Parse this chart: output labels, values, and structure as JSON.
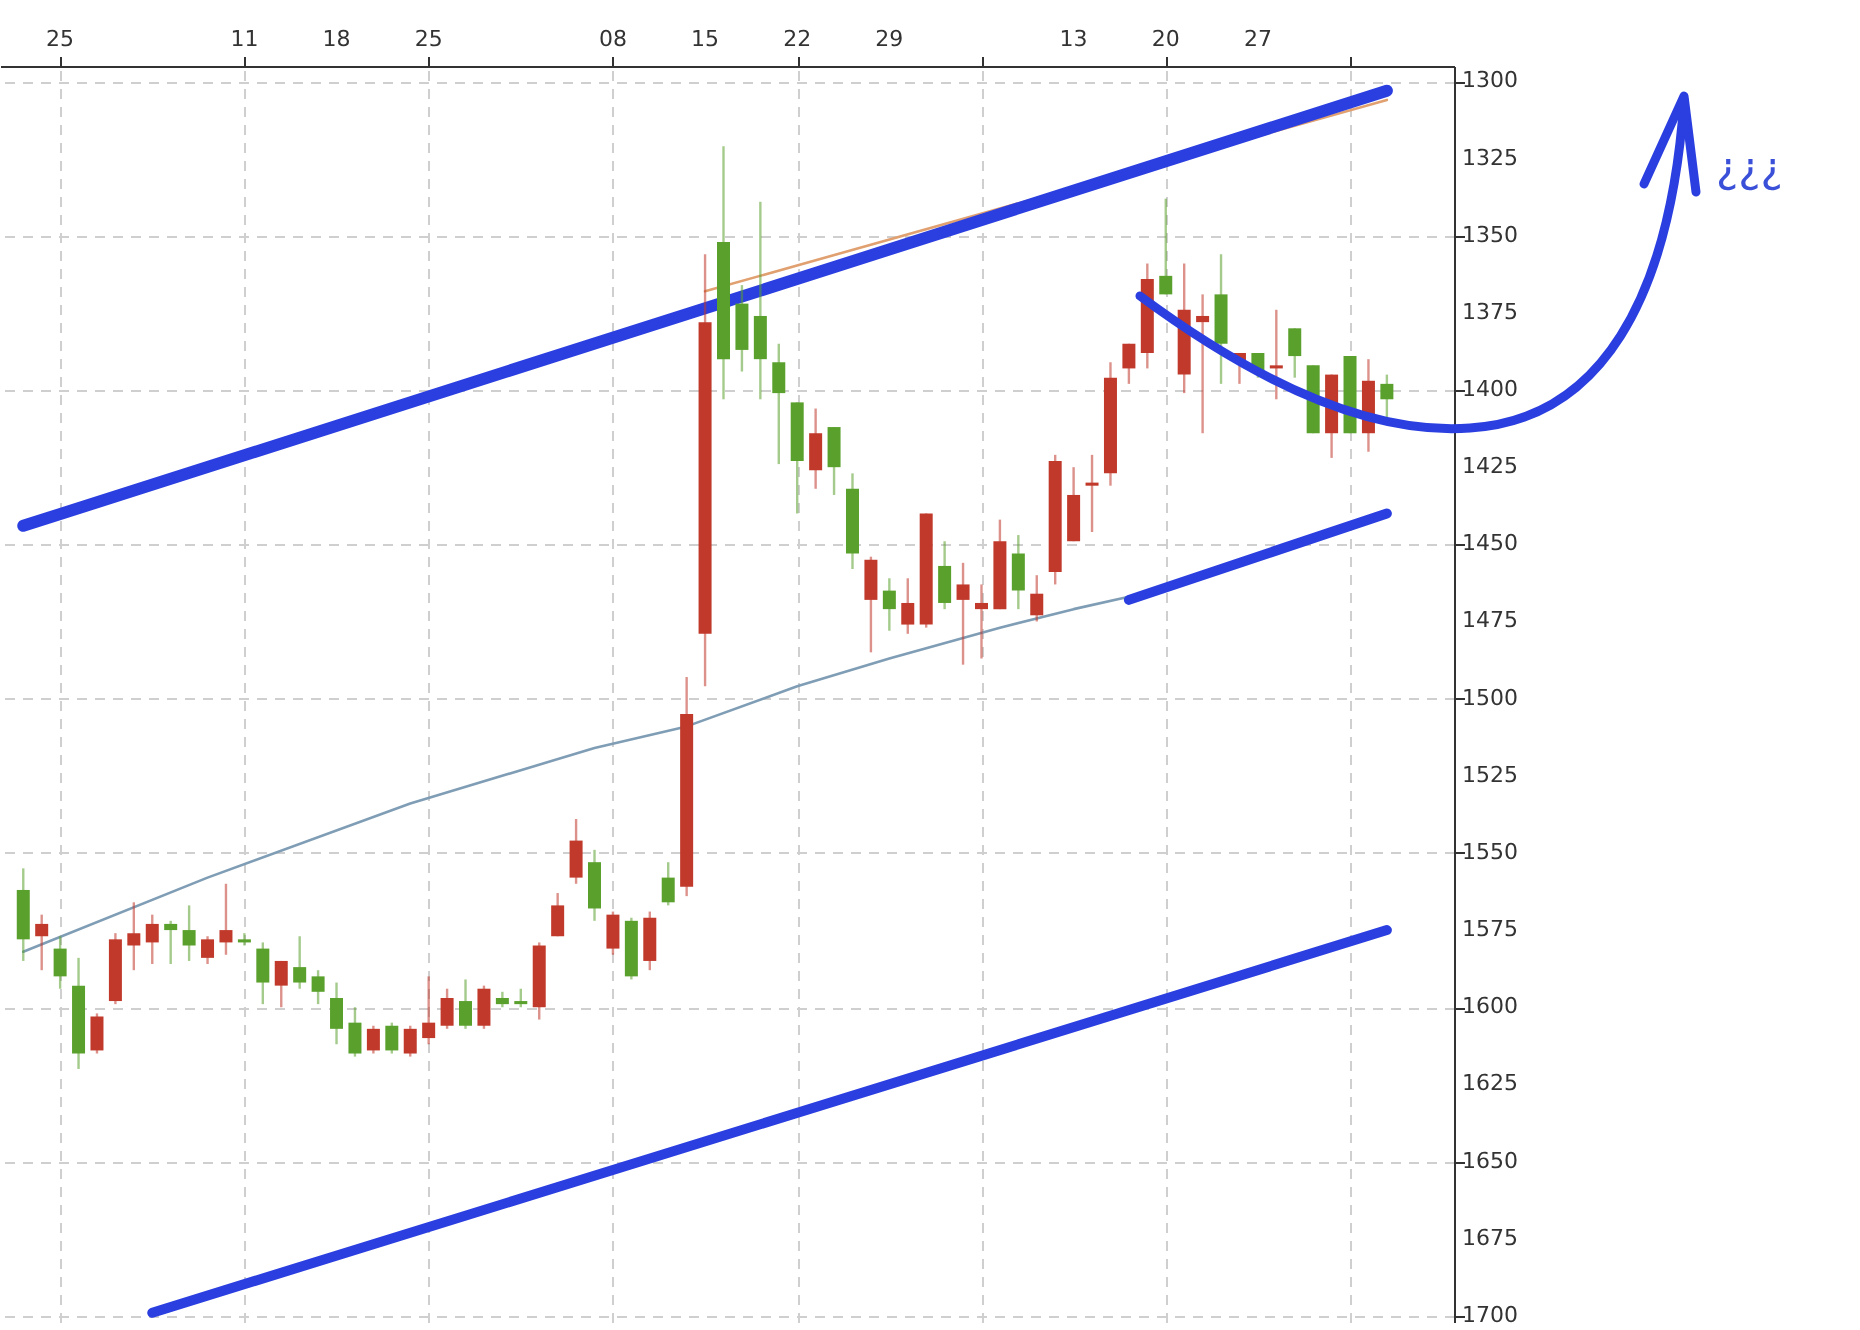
{
  "chart_data": {
    "type": "candlestick",
    "annotations": [
      "¿¿¿"
    ],
    "categories": [
      null,
      null,
      "25",
      null,
      null,
      null,
      null,
      null,
      null,
      null,
      null,
      null,
      "11",
      null,
      null,
      null,
      null,
      "18",
      null,
      null,
      null,
      null,
      "25",
      null,
      null,
      null,
      null,
      null,
      null,
      null,
      null,
      null,
      "08",
      null,
      null,
      null,
      null,
      "15",
      null,
      null,
      null,
      null,
      "22",
      null,
      null,
      null,
      null,
      "29",
      null,
      null,
      null,
      null,
      null,
      null,
      null,
      null,
      null,
      "13",
      null,
      null,
      null,
      null,
      "20",
      null,
      null,
      null,
      null,
      "27",
      null,
      null,
      null,
      null,
      null,
      null,
      null
    ],
    "ohlc": [
      [
        1562,
        1585,
        1555,
        1578
      ],
      [
        1577,
        1588,
        1570,
        1573
      ],
      [
        1581,
        1594,
        1577,
        1590
      ],
      [
        1593,
        1620,
        1584,
        1615
      ],
      [
        1614,
        1615,
        1602,
        1603
      ],
      [
        1598,
        1599,
        1576,
        1578
      ],
      [
        1580,
        1588,
        1566,
        1576
      ],
      [
        1579,
        1586,
        1570,
        1573
      ],
      [
        1573,
        1586,
        1572,
        1575
      ],
      [
        1575,
        1585,
        1567,
        1580
      ],
      [
        1584,
        1586,
        1577,
        1578
      ],
      [
        1579,
        1583,
        1560,
        1575
      ],
      [
        1578,
        1580,
        1576,
        1579
      ],
      [
        1581,
        1599,
        1579,
        1592
      ],
      [
        1593,
        1600,
        1585,
        1585
      ],
      [
        1587,
        1594,
        1577,
        1592
      ],
      [
        1590,
        1599,
        1588,
        1595
      ],
      [
        1597,
        1612,
        1592,
        1607
      ],
      [
        1605,
        1616,
        1600,
        1615
      ],
      [
        1614,
        1615,
        1606,
        1607
      ],
      [
        1606,
        1615,
        1605,
        1614
      ],
      [
        1615,
        1616,
        1606,
        1607
      ],
      [
        1610,
        1612,
        1590,
        1605
      ],
      [
        1606,
        1607,
        1594,
        1597
      ],
      [
        1598,
        1607,
        1591,
        1606
      ],
      [
        1606,
        1607,
        1593,
        1594
      ],
      [
        1597,
        1600,
        1595,
        1599
      ],
      [
        1598,
        1600,
        1594,
        1599
      ],
      [
        1600,
        1604,
        1579,
        1580
      ],
      [
        1577,
        1577,
        1563,
        1567
      ],
      [
        1558,
        1560,
        1539,
        1546
      ],
      [
        1553,
        1572,
        1549,
        1568
      ],
      [
        1581,
        1583,
        1569,
        1570
      ],
      [
        1572,
        1591,
        1571,
        1590
      ],
      [
        1585,
        1588,
        1569,
        1571
      ],
      [
        1558,
        1567,
        1553,
        1566
      ],
      [
        1561,
        1564,
        1493,
        1505
      ],
      [
        1479,
        1496,
        1356,
        1378
      ],
      [
        1352,
        1403,
        1321,
        1390
      ],
      [
        1372,
        1394,
        1366,
        1387
      ],
      [
        1376,
        1403,
        1339,
        1390
      ],
      [
        1391,
        1424,
        1385,
        1401
      ],
      [
        1404,
        1440,
        1404,
        1423
      ],
      [
        1426,
        1432,
        1406,
        1414
      ],
      [
        1412,
        1434,
        1412,
        1425
      ],
      [
        1432,
        1458,
        1427,
        1453
      ],
      [
        1468,
        1485,
        1454,
        1455
      ],
      [
        1465,
        1478,
        1461,
        1471
      ],
      [
        1476,
        1479,
        1461,
        1469
      ],
      [
        1476,
        1477,
        1440,
        1440
      ],
      [
        1457,
        1471,
        1449,
        1469
      ],
      [
        1468,
        1489,
        1456,
        1463
      ],
      [
        1471,
        1487,
        1463,
        1469
      ],
      [
        1471,
        1471,
        1442,
        1449
      ],
      [
        1453,
        1471,
        1447,
        1465
      ],
      [
        1473,
        1475,
        1460,
        1466
      ],
      [
        1459,
        1463,
        1421,
        1423
      ],
      [
        1449,
        1449,
        1425,
        1434
      ],
      [
        1431,
        1446,
        1421,
        1430
      ],
      [
        1427,
        1431,
        1391,
        1396
      ],
      [
        1393,
        1398,
        1385,
        1385
      ],
      [
        1388,
        1393,
        1359,
        1364
      ],
      [
        1363,
        1369,
        1338,
        1369
      ],
      [
        1395,
        1401,
        1359,
        1374
      ],
      [
        1378,
        1414,
        1369,
        1376
      ],
      [
        1369,
        1398,
        1356,
        1385
      ],
      [
        1391,
        1398,
        1388,
        1388
      ],
      [
        1388,
        1396,
        1388,
        1394
      ],
      [
        1393,
        1403,
        1374,
        1392
      ],
      [
        1380,
        1396,
        1380,
        1389
      ],
      [
        1392,
        1414,
        1392,
        1414
      ],
      [
        1414,
        1422,
        1395,
        1395
      ],
      [
        1389,
        1414,
        1389,
        1414
      ],
      [
        1414,
        1420,
        1390,
        1397
      ],
      [
        1398,
        1409,
        1395,
        1403
      ]
    ],
    "colors": [
      "#5aa02c",
      "#c0392b",
      "#5aa02c",
      "#5aa02c",
      "#c0392b",
      "#c0392b",
      "#c0392b",
      "#c0392b",
      "#5aa02c",
      "#5aa02c",
      "#c0392b",
      "#c0392b",
      "#5aa02c",
      "#5aa02c",
      "#c0392b",
      "#5aa02c",
      "#5aa02c",
      "#5aa02c",
      "#5aa02c",
      "#c0392b",
      "#5aa02c",
      "#c0392b",
      "#c0392b",
      "#c0392b",
      "#5aa02c",
      "#c0392b",
      "#5aa02c",
      "#5aa02c",
      "#c0392b",
      "#c0392b",
      "#c0392b",
      "#5aa02c",
      "#c0392b",
      "#5aa02c",
      "#c0392b",
      "#5aa02c",
      "#c0392b",
      "#c0392b",
      "#5aa02c",
      "#5aa02c",
      "#5aa02c",
      "#5aa02c",
      "#5aa02c",
      "#c0392b",
      "#5aa02c",
      "#5aa02c",
      "#c0392b",
      "#5aa02c",
      "#c0392b",
      "#c0392b",
      "#5aa02c",
      "#c0392b",
      "#c0392b",
      "#c0392b",
      "#5aa02c",
      "#c0392b",
      "#c0392b",
      "#c0392b",
      "#c0392b",
      "#c0392b",
      "#c0392b",
      "#c0392b",
      "#5aa02c",
      "#c0392b",
      "#c0392b",
      "#5aa02c",
      "#c0392b",
      "#5aa02c",
      "#c0392b",
      "#5aa02c",
      "#5aa02c",
      "#c0392b",
      "#5aa02c",
      "#c0392b",
      "#5aa02c"
    ],
    "series": [
      {
        "type": "line",
        "color": "#7f9db5",
        "values": [
          1582,
          null,
          null,
          null,
          null,
          null,
          null,
          null,
          null,
          null,
          1558,
          null,
          null,
          null,
          null,
          null,
          null,
          null,
          null,
          null,
          null,
          1534,
          null,
          null,
          null,
          null,
          null,
          null,
          null,
          null,
          null,
          1516,
          null,
          null,
          null,
          null,
          1509,
          null,
          null,
          null,
          null,
          null,
          1496,
          null,
          null,
          null,
          null,
          1487,
          null,
          null,
          null,
          null,
          null,
          1477,
          null,
          null,
          null,
          1471,
          null,
          null,
          1467,
          null,
          null,
          null,
          null,
          null,
          null,
          null,
          null,
          null,
          null,
          null,
          null,
          null,
          null
        ]
      },
      {
        "type": "line",
        "color": "#e0a070",
        "values": [
          null,
          null,
          null,
          null,
          null,
          null,
          null,
          null,
          null,
          null,
          null,
          null,
          null,
          null,
          null,
          null,
          null,
          null,
          null,
          null,
          null,
          null,
          null,
          null,
          null,
          null,
          null,
          null,
          null,
          null,
          null,
          null,
          null,
          null,
          null,
          null,
          null,
          1368,
          null,
          null,
          null,
          null,
          null,
          null,
          null,
          null,
          null,
          null,
          null,
          null,
          null,
          null,
          null,
          null,
          null,
          null,
          null,
          null,
          null,
          null,
          null,
          null,
          null,
          null,
          null,
          null,
          null,
          null,
          null,
          null,
          null,
          null,
          null,
          null,
          1306
        ]
      },
      {
        "type": "line",
        "color": "#2b3fe0",
        "values": [
          1444,
          null,
          null,
          null,
          null,
          null,
          null,
          null,
          null,
          null,
          null,
          null,
          null,
          null,
          null,
          null,
          null,
          null,
          null,
          null,
          null,
          null,
          null,
          null,
          null,
          null,
          null,
          null,
          null,
          null,
          null,
          null,
          null,
          null,
          null,
          null,
          null,
          null,
          null,
          null,
          null,
          null,
          null,
          null,
          null,
          null,
          null,
          null,
          null,
          null,
          null,
          null,
          null,
          null,
          null,
          null,
          null,
          null,
          null,
          null,
          null,
          null,
          null,
          null,
          null,
          null,
          null,
          null,
          null,
          null,
          null,
          null,
          null,
          null,
          1303
        ]
      },
      {
        "type": "line",
        "color": "#2b3fe0",
        "values": [
          null,
          null,
          null,
          null,
          null,
          null,
          null,
          null,
          null,
          null,
          null,
          null,
          null,
          null,
          null,
          null,
          null,
          null,
          null,
          null,
          null,
          null,
          null,
          null,
          null,
          null,
          null,
          null,
          null,
          null,
          null,
          null,
          null,
          null,
          null,
          null,
          null,
          null,
          null,
          null,
          null,
          null,
          null,
          null,
          null,
          null,
          null,
          null,
          null,
          null,
          null,
          null,
          null,
          null,
          null,
          null,
          null,
          null,
          null,
          null,
          1468,
          null,
          null,
          null,
          null,
          null,
          null,
          null,
          null,
          null,
          null,
          null,
          null,
          null,
          1440
        ]
      },
      {
        "type": "line",
        "color": "#2b3fe0",
        "values": [
          null,
          null,
          null,
          null,
          null,
          null,
          null,
          1699,
          null,
          null,
          null,
          null,
          null,
          null,
          null,
          null,
          null,
          null,
          null,
          null,
          null,
          null,
          null,
          null,
          null,
          null,
          null,
          null,
          null,
          null,
          null,
          null,
          null,
          null,
          null,
          null,
          null,
          null,
          null,
          null,
          null,
          null,
          null,
          null,
          null,
          null,
          null,
          null,
          null,
          null,
          null,
          null,
          null,
          null,
          null,
          null,
          null,
          null,
          null,
          null,
          null,
          null,
          null,
          null,
          null,
          null,
          null,
          null,
          null,
          null,
          null,
          null,
          null,
          null,
          1575
        ]
      }
    ],
    "ylim": [
      1702,
      1295
    ],
    "yticks": [
      1300,
      1325,
      1350,
      1375,
      1400,
      1425,
      1450,
      1475,
      1500,
      1525,
      1550,
      1575,
      1600,
      1625,
      1650,
      1675,
      1700
    ],
    "grid": true
  }
}
